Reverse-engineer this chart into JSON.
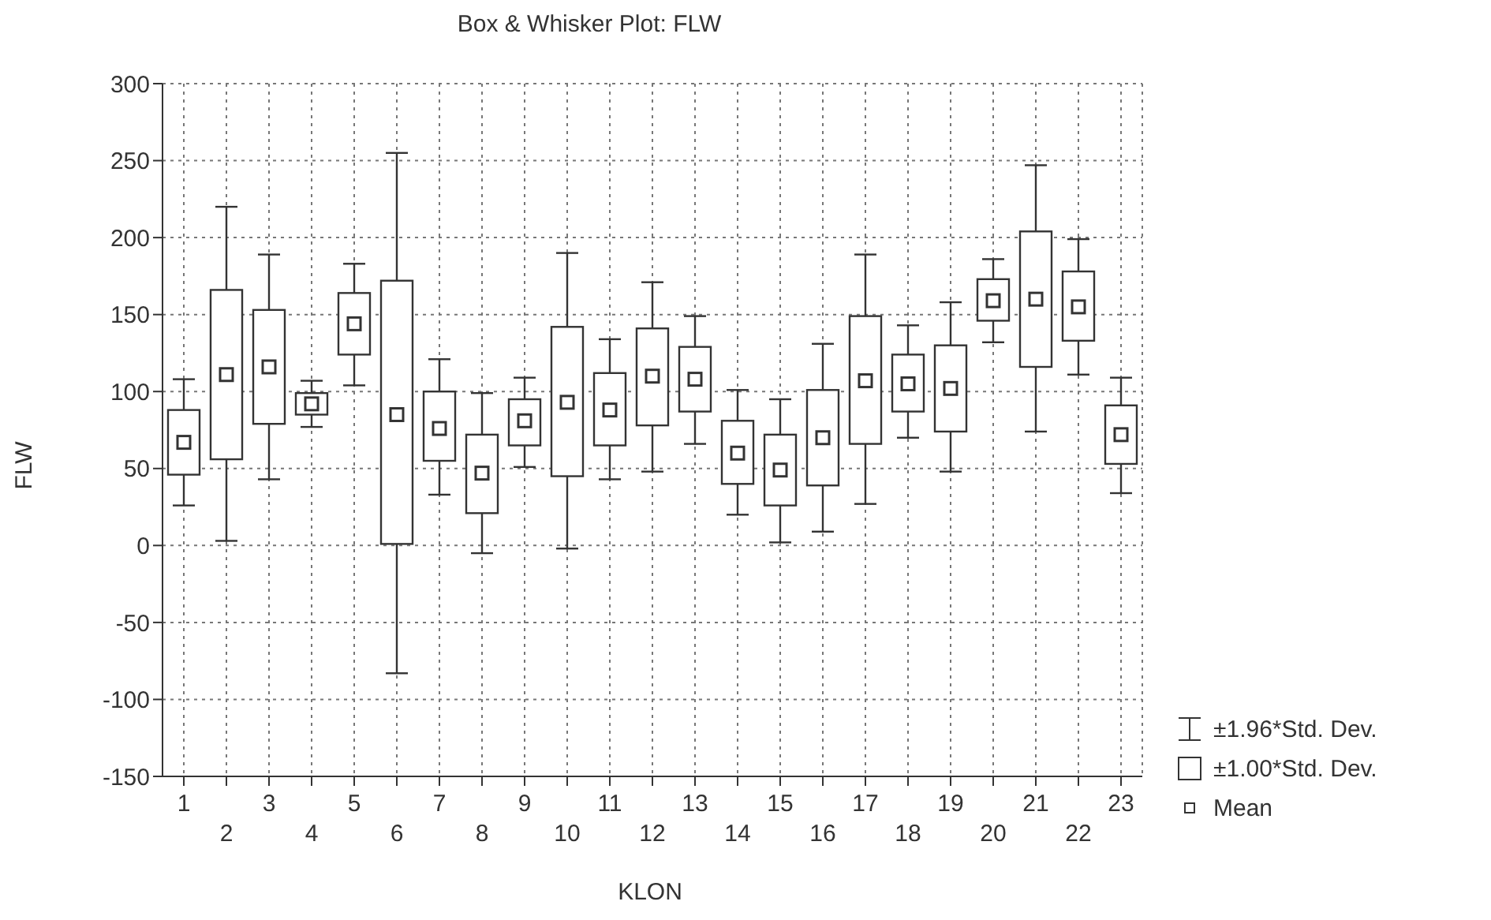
{
  "chart_data": {
    "type": "box",
    "title": "Box & Whisker Plot:     FLW",
    "xlabel": "KLON",
    "ylabel": "FLW",
    "categories": [
      "1",
      "2",
      "3",
      "4",
      "5",
      "6",
      "7",
      "8",
      "9",
      "10",
      "11",
      "12",
      "13",
      "14",
      "15",
      "16",
      "17",
      "18",
      "19",
      "20",
      "21",
      "22",
      "23"
    ],
    "boxes": [
      {
        "low": 26,
        "q1": 46,
        "mean": 67,
        "q3": 88,
        "high": 108
      },
      {
        "low": 3,
        "q1": 56,
        "mean": 111,
        "q3": 166,
        "high": 220
      },
      {
        "low": 43,
        "q1": 79,
        "mean": 116,
        "q3": 153,
        "high": 189
      },
      {
        "low": 77,
        "q1": 85,
        "mean": 92,
        "q3": 99,
        "high": 107
      },
      {
        "low": 104,
        "q1": 124,
        "mean": 144,
        "q3": 164,
        "high": 183
      },
      {
        "low": -83,
        "q1": 1,
        "mean": 85,
        "q3": 172,
        "high": 255
      },
      {
        "low": 33,
        "q1": 55,
        "mean": 76,
        "q3": 100,
        "high": 121
      },
      {
        "low": -5,
        "q1": 21,
        "mean": 47,
        "q3": 72,
        "high": 99
      },
      {
        "low": 51,
        "q1": 65,
        "mean": 81,
        "q3": 95,
        "high": 109
      },
      {
        "low": -2,
        "q1": 45,
        "mean": 93,
        "q3": 142,
        "high": 190
      },
      {
        "low": 43,
        "q1": 65,
        "mean": 88,
        "q3": 112,
        "high": 134
      },
      {
        "low": 48,
        "q1": 78,
        "mean": 110,
        "q3": 141,
        "high": 171
      },
      {
        "low": 66,
        "q1": 87,
        "mean": 108,
        "q3": 129,
        "high": 149
      },
      {
        "low": 20,
        "q1": 40,
        "mean": 60,
        "q3": 81,
        "high": 101
      },
      {
        "low": 2,
        "q1": 26,
        "mean": 49,
        "q3": 72,
        "high": 95
      },
      {
        "low": 9,
        "q1": 39,
        "mean": 70,
        "q3": 101,
        "high": 131
      },
      {
        "low": 27,
        "q1": 66,
        "mean": 107,
        "q3": 149,
        "high": 189
      },
      {
        "low": 70,
        "q1": 87,
        "mean": 105,
        "q3": 124,
        "high": 143
      },
      {
        "low": 48,
        "q1": 74,
        "mean": 102,
        "q3": 130,
        "high": 158
      },
      {
        "low": 132,
        "q1": 146,
        "mean": 159,
        "q3": 173,
        "high": 186
      },
      {
        "low": 74,
        "q1": 116,
        "mean": 160,
        "q3": 204,
        "high": 247
      },
      {
        "low": 111,
        "q1": 133,
        "mean": 155,
        "q3": 178,
        "high": 199
      },
      {
        "low": 34,
        "q1": 53,
        "mean": 72,
        "q3": 91,
        "high": 109
      }
    ],
    "ylim": [
      -150,
      300
    ],
    "yticks": [
      -150,
      -100,
      -50,
      0,
      50,
      100,
      150,
      200,
      250,
      300
    ],
    "grid": true,
    "annotations": [
      "±1.96*Std. Dev.",
      "±1.00*Std. Dev.",
      "Mean"
    ]
  }
}
